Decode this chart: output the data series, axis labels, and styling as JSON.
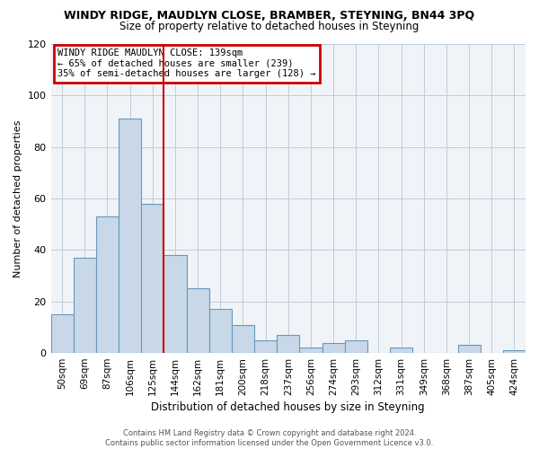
{
  "title": "WINDY RIDGE, MAUDLYN CLOSE, BRAMBER, STEYNING, BN44 3PQ",
  "subtitle": "Size of property relative to detached houses in Steyning",
  "xlabel": "Distribution of detached houses by size in Steyning",
  "ylabel": "Number of detached properties",
  "bar_labels": [
    "50sqm",
    "69sqm",
    "87sqm",
    "106sqm",
    "125sqm",
    "144sqm",
    "162sqm",
    "181sqm",
    "200sqm",
    "218sqm",
    "237sqm",
    "256sqm",
    "274sqm",
    "293sqm",
    "312sqm",
    "331sqm",
    "349sqm",
    "368sqm",
    "387sqm",
    "405sqm",
    "424sqm"
  ],
  "bar_values": [
    15,
    37,
    53,
    91,
    58,
    38,
    25,
    17,
    11,
    5,
    7,
    2,
    4,
    5,
    0,
    2,
    0,
    0,
    3,
    0,
    1
  ],
  "bar_color": "#c8d8e8",
  "bar_edge_color": "#6699bb",
  "vline_color": "#cc0000",
  "ylim": [
    0,
    120
  ],
  "yticks": [
    0,
    20,
    40,
    60,
    80,
    100,
    120
  ],
  "annotation_title": "WINDY RIDGE MAUDLYN CLOSE: 139sqm",
  "annotation_line1": "← 65% of detached houses are smaller (239)",
  "annotation_line2": "35% of semi-detached houses are larger (128) →",
  "annotation_box_color": "#ffffff",
  "annotation_box_edge": "#cc0000",
  "footer1": "Contains HM Land Registry data © Crown copyright and database right 2024.",
  "footer2": "Contains public sector information licensed under the Open Government Licence v3.0.",
  "bg_color": "#f0f4f8"
}
